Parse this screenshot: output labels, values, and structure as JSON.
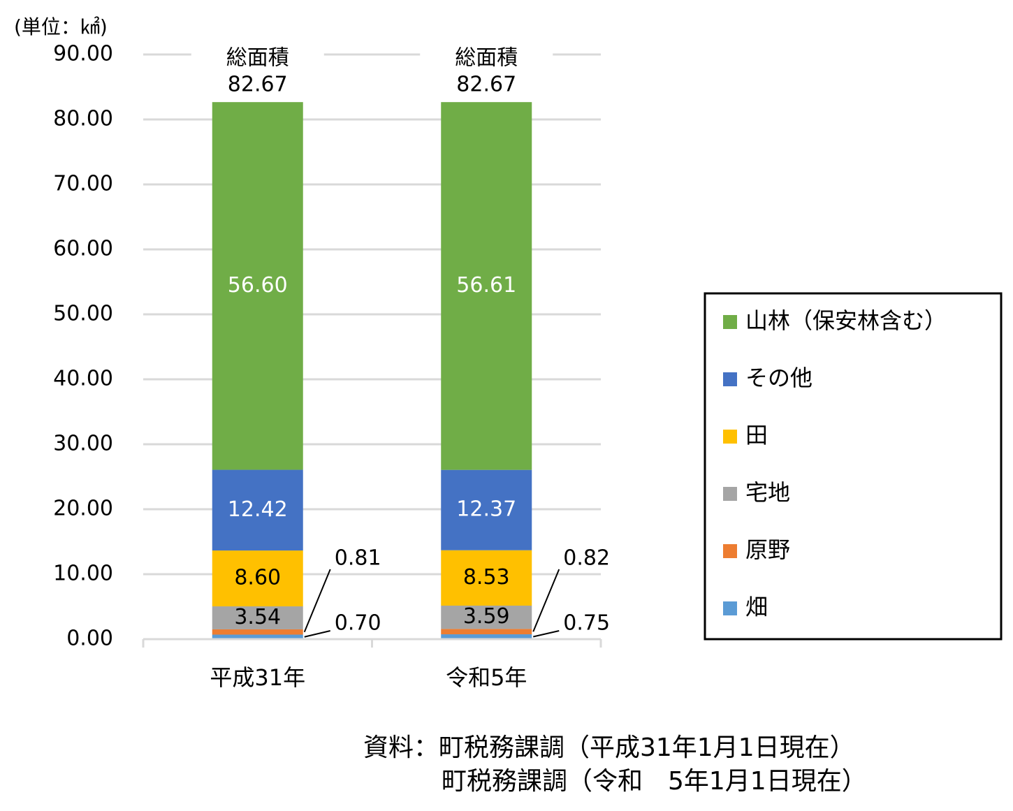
{
  "chart_data": {
    "type": "stacked-bar",
    "unit_label": "(単位：㎢)",
    "categories": [
      "平成31年",
      "令和5年"
    ],
    "series": [
      {
        "name": "畑",
        "color": "#5b9bd5",
        "values": [
          0.7,
          0.75
        ],
        "value_labels": [
          "0.70",
          "0.75"
        ]
      },
      {
        "name": "原野",
        "color": "#ed7d31",
        "values": [
          0.81,
          0.82
        ],
        "value_labels": [
          "0.81",
          "0.82"
        ]
      },
      {
        "name": "宅地",
        "color": "#a5a5a5",
        "values": [
          3.54,
          3.59
        ],
        "value_labels": [
          "3.54",
          "3.59"
        ]
      },
      {
        "name": "田",
        "color": "#ffc000",
        "values": [
          8.6,
          8.53
        ],
        "value_labels": [
          "8.60",
          "8.53"
        ]
      },
      {
        "name": "その他",
        "color": "#4472c4",
        "values": [
          12.42,
          12.37
        ],
        "value_labels": [
          "12.42",
          "12.37"
        ]
      },
      {
        "name": "山林（保安林含む）",
        "color": "#70ad47",
        "values": [
          56.6,
          56.61
        ],
        "value_labels": [
          "56.60",
          "56.61"
        ]
      }
    ],
    "total_label": "総面積",
    "totals": [
      82.67,
      82.67
    ],
    "ylim": [
      0,
      90
    ],
    "yticks": [
      {
        "value": 0,
        "label": "0.00"
      },
      {
        "value": 10,
        "label": "10.00"
      },
      {
        "value": 20,
        "label": "20.00"
      },
      {
        "value": 30,
        "label": "30.00"
      },
      {
        "value": 40,
        "label": "40.00"
      },
      {
        "value": 50,
        "label": "50.00"
      },
      {
        "value": 60,
        "label": "60.00"
      },
      {
        "value": 70,
        "label": "70.00"
      },
      {
        "value": 80,
        "label": "80.00"
      },
      {
        "value": 90,
        "label": "90.00"
      }
    ],
    "grid": true,
    "legend": "right",
    "source": [
      "資料：町税務課調（平成31年1月1日現在）",
      "町税務課調（令和　5年1月1日現在）"
    ]
  }
}
